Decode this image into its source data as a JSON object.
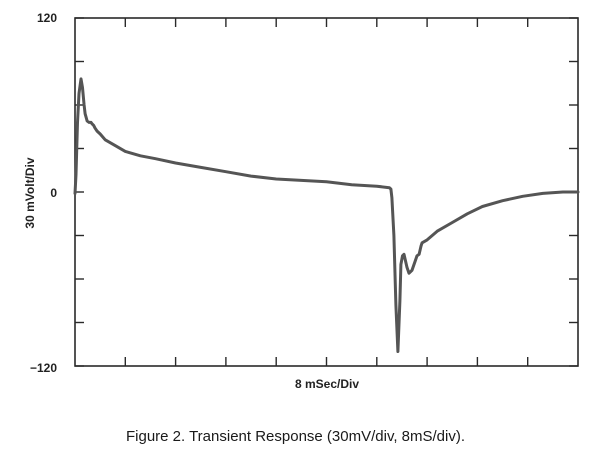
{
  "caption": "Figure 2.  Transient Response (30mV/div, 8mS/div).",
  "chart_data": {
    "type": "line",
    "title": "",
    "xlabel": "8 mSec/Div",
    "ylabel": "30 mVolt/Div",
    "xlim": [
      0,
      80
    ],
    "ylim": [
      -120,
      120
    ],
    "x_divisions": 10,
    "y_divisions": 8,
    "yticks": [
      120,
      0,
      -120
    ],
    "yticklabels": [
      "120",
      "0",
      "−120"
    ],
    "grid": false,
    "colors": {
      "trace": "#555555",
      "frame": "#2a2a2a"
    },
    "series": [
      {
        "name": "",
        "x": [
          0,
          0.16,
          0.4,
          0.64,
          0.96,
          1.2,
          1.44,
          1.6,
          1.92,
          2.24,
          2.56,
          2.72,
          2.96,
          3.2,
          3.52,
          4.0,
          4.8,
          6.4,
          8.0,
          10.4,
          12.8,
          16.0,
          20.0,
          24.0,
          28.0,
          32.0,
          36.0,
          40.0,
          44.0,
          48.0,
          50.0,
          50.24,
          50.4,
          50.72,
          51.04,
          51.36,
          51.68,
          51.84,
          52.08,
          52.32,
          52.48,
          52.8,
          53.12,
          53.6,
          54.08,
          54.4,
          54.72,
          55.04,
          55.2,
          56.0,
          57.6,
          60.0,
          62.4,
          64.8,
          68.0,
          71.2,
          74.4,
          77.6,
          80.0
        ],
        "y": [
          -1,
          12,
          48,
          68,
          78,
          72,
          60,
          54,
          49,
          48,
          48,
          47,
          46,
          44,
          42,
          40,
          36,
          32,
          28,
          25,
          23,
          20,
          17,
          14,
          11,
          9,
          8,
          7,
          5,
          4,
          3,
          2,
          -4,
          -30,
          -78,
          -110,
          -75,
          -50,
          -44,
          -43,
          -46,
          -52,
          -56,
          -54,
          -48,
          -44,
          -43,
          -37,
          -35,
          -33,
          -27,
          -21,
          -15,
          -10,
          -6,
          -3,
          -1,
          0,
          0
        ]
      }
    ]
  }
}
